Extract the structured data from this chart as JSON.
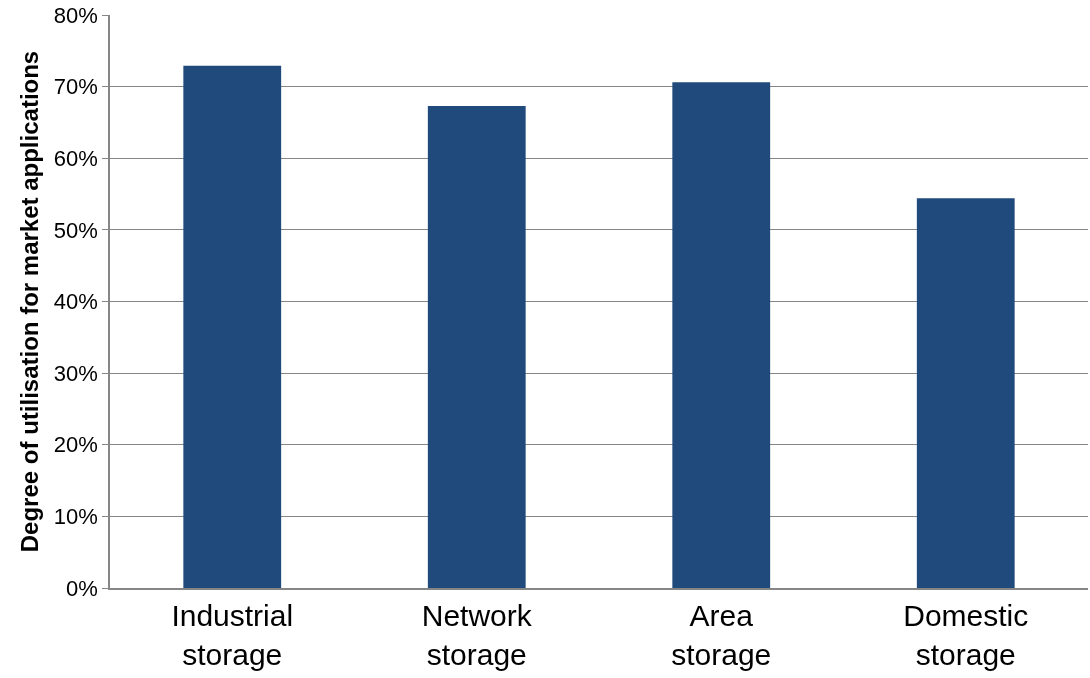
{
  "chart_data": {
    "type": "bar",
    "ylabel": "Degree of utilisation for market applications",
    "categories": [
      "Industrial storage",
      "Network storage",
      "Area storage",
      "Domestic storage"
    ],
    "values": [
      72.9,
      67.3,
      70.6,
      54.4
    ],
    "color": "#204a7c",
    "ylim": [
      0,
      80
    ],
    "yticks": [
      {
        "value": 0,
        "label": "0%"
      },
      {
        "value": 10,
        "label": "10%"
      },
      {
        "value": 20,
        "label": "20%"
      },
      {
        "value": 30,
        "label": "30%"
      },
      {
        "value": 40,
        "label": "40%"
      },
      {
        "value": 50,
        "label": "50%"
      },
      {
        "value": 60,
        "label": "60%"
      },
      {
        "value": 70,
        "label": "70%"
      },
      {
        "value": 80,
        "label": "80%"
      }
    ],
    "grid": "y",
    "legend": false
  }
}
